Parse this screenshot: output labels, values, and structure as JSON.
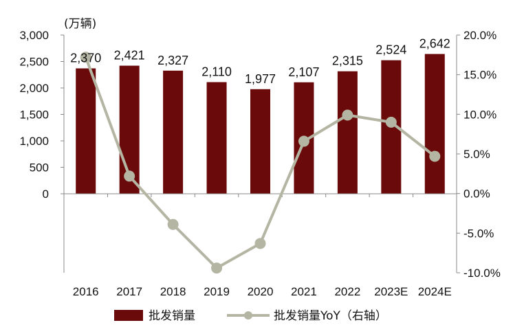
{
  "chart_data": {
    "type": "bar+line",
    "unit_label": "(万辆)",
    "categories": [
      "2016",
      "2017",
      "2018",
      "2019",
      "2020",
      "2021",
      "2022",
      "2023E",
      "2024E"
    ],
    "series": [
      {
        "name": "批发销量",
        "type": "bar",
        "axis": "left",
        "color": "#6b0a0a",
        "values": [
          2370,
          2421,
          2327,
          2110,
          1977,
          2107,
          2315,
          2524,
          2642
        ],
        "labels": [
          "2,370",
          "2,421",
          "2,327",
          "2,110",
          "1,977",
          "2,107",
          "2,315",
          "2,524",
          "2,642"
        ]
      },
      {
        "name": "批发销量YoY（右轴）",
        "type": "line",
        "axis": "right",
        "color": "#b5b5a3",
        "values": [
          17.2,
          2.2,
          -3.9,
          -9.4,
          -6.3,
          6.6,
          9.9,
          9.0,
          4.7
        ]
      }
    ],
    "left_axis": {
      "ticks": [
        0,
        500,
        1000,
        1500,
        2000,
        2500,
        3000
      ],
      "tick_labels": [
        "0",
        "500",
        "1,000",
        "1,500",
        "2,000",
        "2,500",
        "3,000"
      ],
      "range": [
        -1500,
        3000
      ]
    },
    "right_axis": {
      "ticks": [
        -10,
        -5,
        0,
        5,
        10,
        15,
        20
      ],
      "tick_labels": [
        "-10.0%",
        "-5.0%",
        "0.0%",
        "5.0%",
        "10.0%",
        "15.0%",
        "20.0%"
      ],
      "range": [
        -10,
        20
      ]
    },
    "legend_position": "bottom"
  }
}
